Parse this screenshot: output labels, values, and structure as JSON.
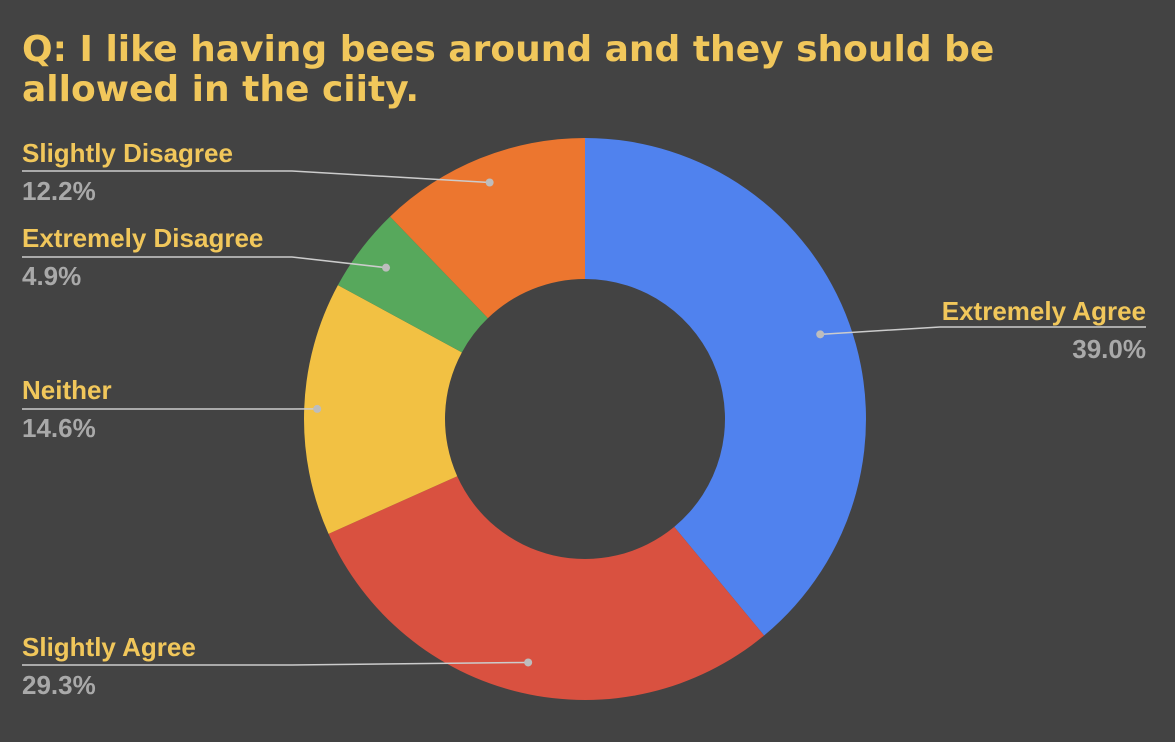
{
  "chart_data": {
    "type": "pie",
    "donut": true,
    "title": "Q: I like having bees around and they should be allowed in the ciity.",
    "slices": [
      {
        "label": "Extremely Agree",
        "value": 39.0,
        "value_label": "39.0%",
        "color": "#5082ee"
      },
      {
        "label": "Slightly Agree",
        "value": 29.3,
        "value_label": "29.3%",
        "color": "#d95140"
      },
      {
        "label": "Neither",
        "value": 14.6,
        "value_label": "14.6%",
        "color": "#f2c143"
      },
      {
        "label": "Extremely Disagree",
        "value": 4.9,
        "value_label": "4.9%",
        "color": "#57a85c"
      },
      {
        "label": "Slightly Disagree",
        "value": 12.2,
        "value_label": "12.2%",
        "color": "#ec762f"
      }
    ],
    "start_angle": "top",
    "direction": "clockwise",
    "legend": "none",
    "label_style": "callout"
  },
  "colors": {
    "background": "#434343",
    "title": "#f1c75b",
    "label": "#f1c75b",
    "percent": "#a9a9a9",
    "leader_line": "#cccccc"
  }
}
